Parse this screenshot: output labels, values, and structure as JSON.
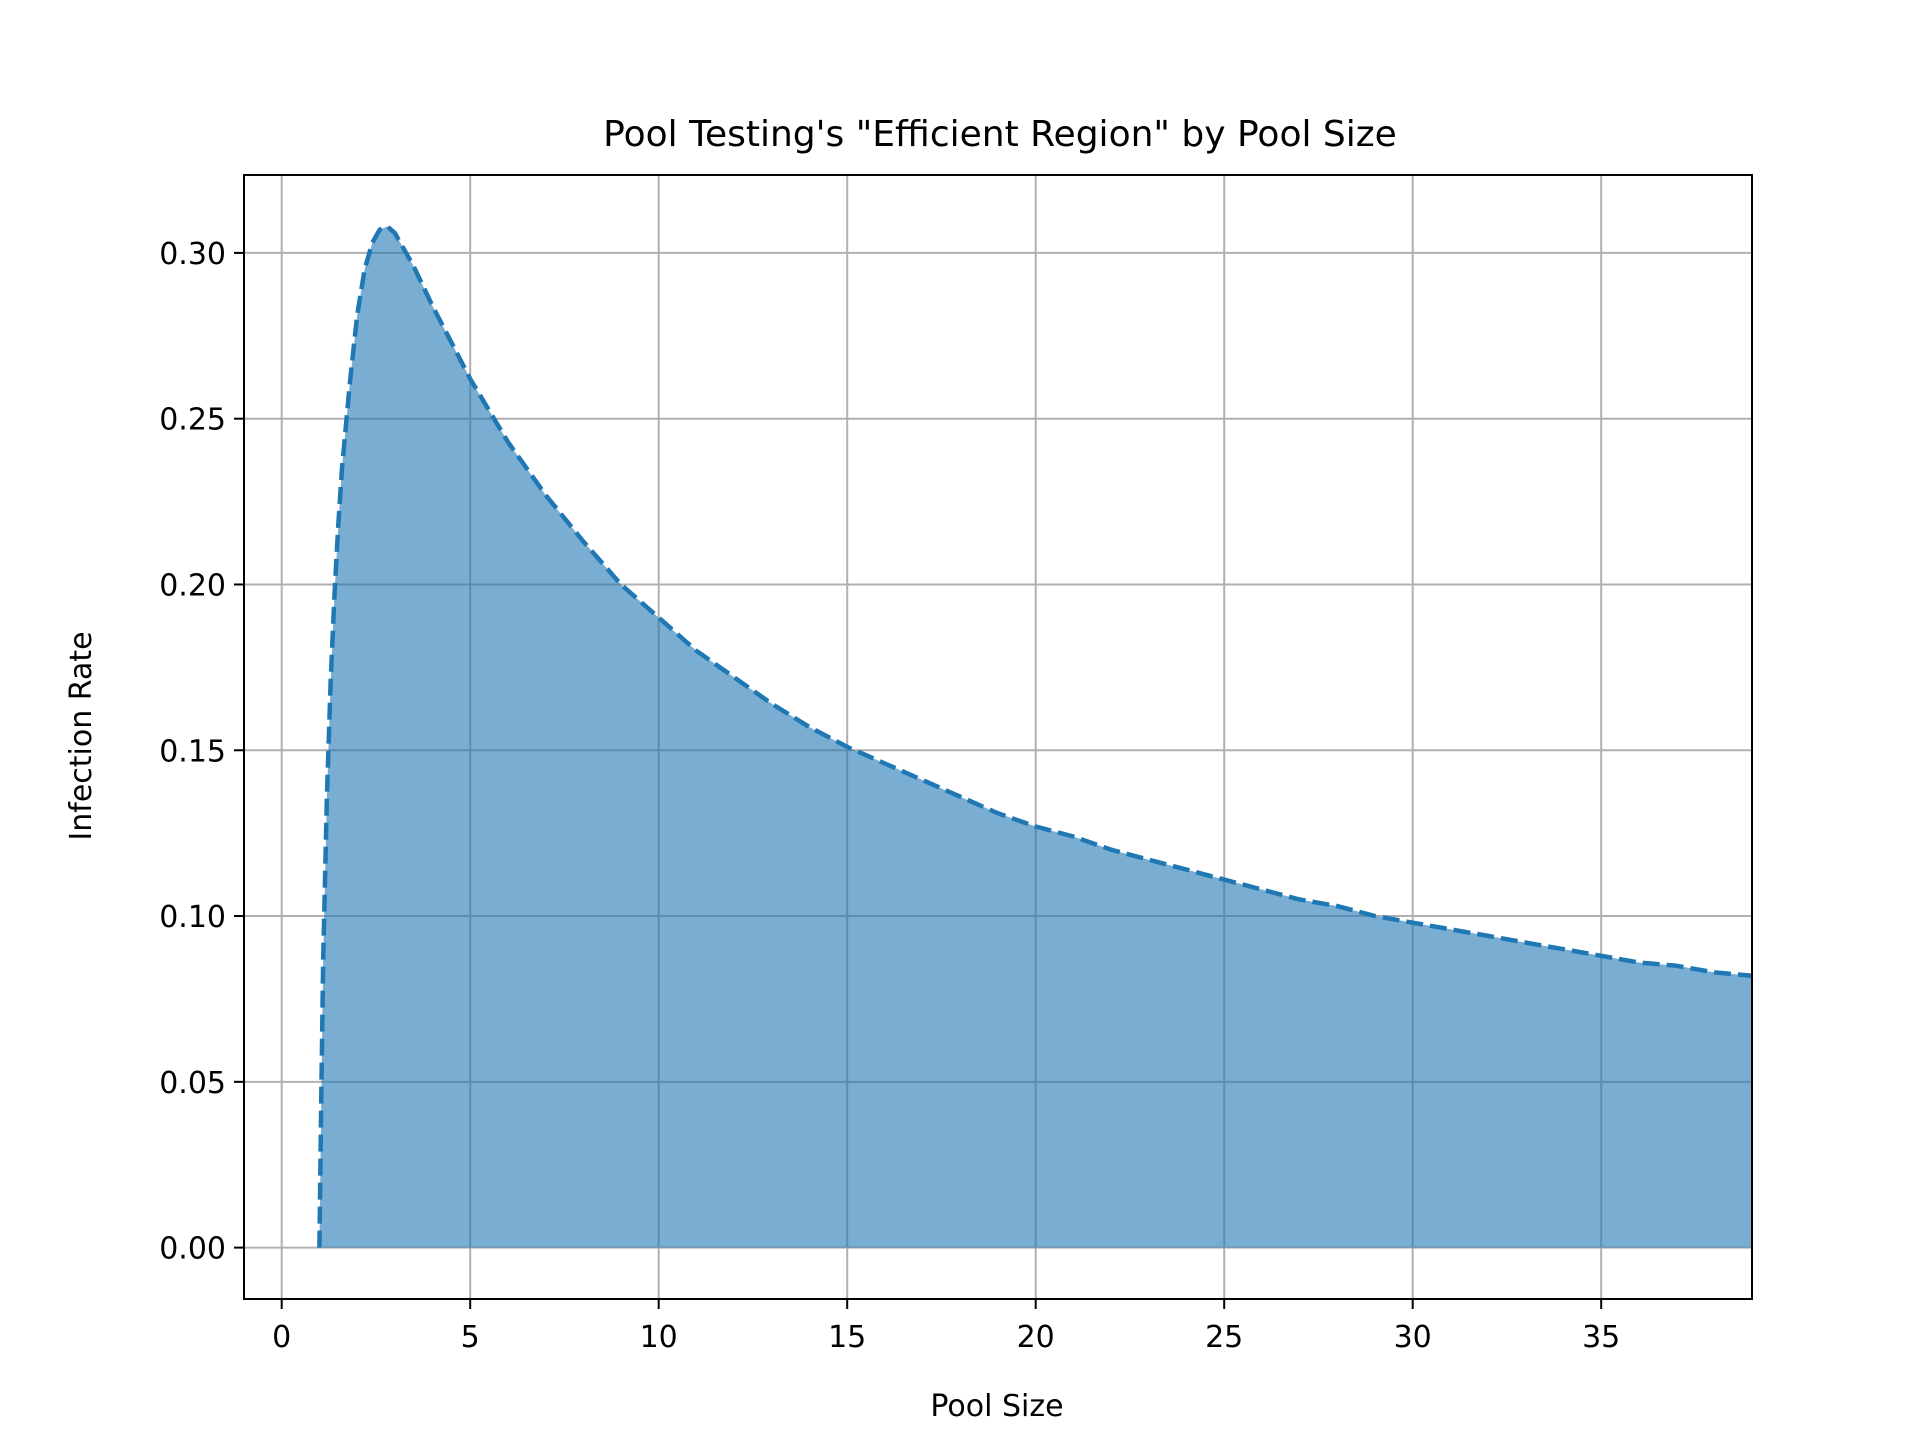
{
  "chart_data": {
    "type": "area",
    "title": "Pool Testing's \"Efficient Region\" by Pool Size",
    "xlabel": "Pool Size",
    "ylabel": "Infection Rate",
    "xlim": [
      -1,
      39
    ],
    "ylim": [
      -0.0155,
      0.3235
    ],
    "xticks": [
      0,
      5,
      10,
      15,
      20,
      25,
      30,
      35
    ],
    "xtick_labels": [
      "0",
      "5",
      "10",
      "15",
      "20",
      "25",
      "30",
      "35"
    ],
    "yticks": [
      0.0,
      0.05,
      0.1,
      0.15,
      0.2,
      0.25,
      0.3
    ],
    "ytick_labels": [
      "0.00",
      "0.05",
      "0.10",
      "0.15",
      "0.20",
      "0.25",
      "0.30"
    ],
    "grid": true,
    "line_style": "dashed",
    "colors": {
      "line": "#1f77b4",
      "fill": "#1f77b4",
      "fill_opacity": 0.6,
      "grid": "#b0b0b0"
    },
    "series": [
      {
        "x": [
          1.0,
          1.05,
          1.1,
          1.2,
          1.3,
          1.4,
          1.5,
          1.6,
          1.8,
          2.0,
          2.2,
          2.4,
          2.6,
          2.8,
          3.0,
          3.5,
          4,
          4.5,
          5,
          6,
          7,
          8,
          9,
          10,
          11,
          12,
          13,
          14,
          15,
          16,
          17,
          18,
          19,
          20,
          21,
          22,
          23,
          24,
          25,
          26,
          27,
          28,
          29,
          30,
          31,
          32,
          33,
          34,
          35,
          36,
          37,
          38,
          39
        ],
        "y": [
          0.0,
          0.046,
          0.087,
          0.136,
          0.171,
          0.197,
          0.218,
          0.235,
          0.26,
          0.281,
          0.295,
          0.303,
          0.307,
          0.308,
          0.306,
          0.296,
          0.284,
          0.273,
          0.262,
          0.243,
          0.227,
          0.213,
          0.2,
          0.19,
          0.18,
          0.172,
          0.164,
          0.157,
          0.151,
          0.146,
          0.141,
          0.136,
          0.131,
          0.127,
          0.124,
          0.12,
          0.117,
          0.114,
          0.111,
          0.108,
          0.105,
          0.103,
          0.1,
          0.098,
          0.096,
          0.094,
          0.092,
          0.09,
          0.088,
          0.086,
          0.085,
          0.083,
          0.082
        ]
      }
    ]
  }
}
